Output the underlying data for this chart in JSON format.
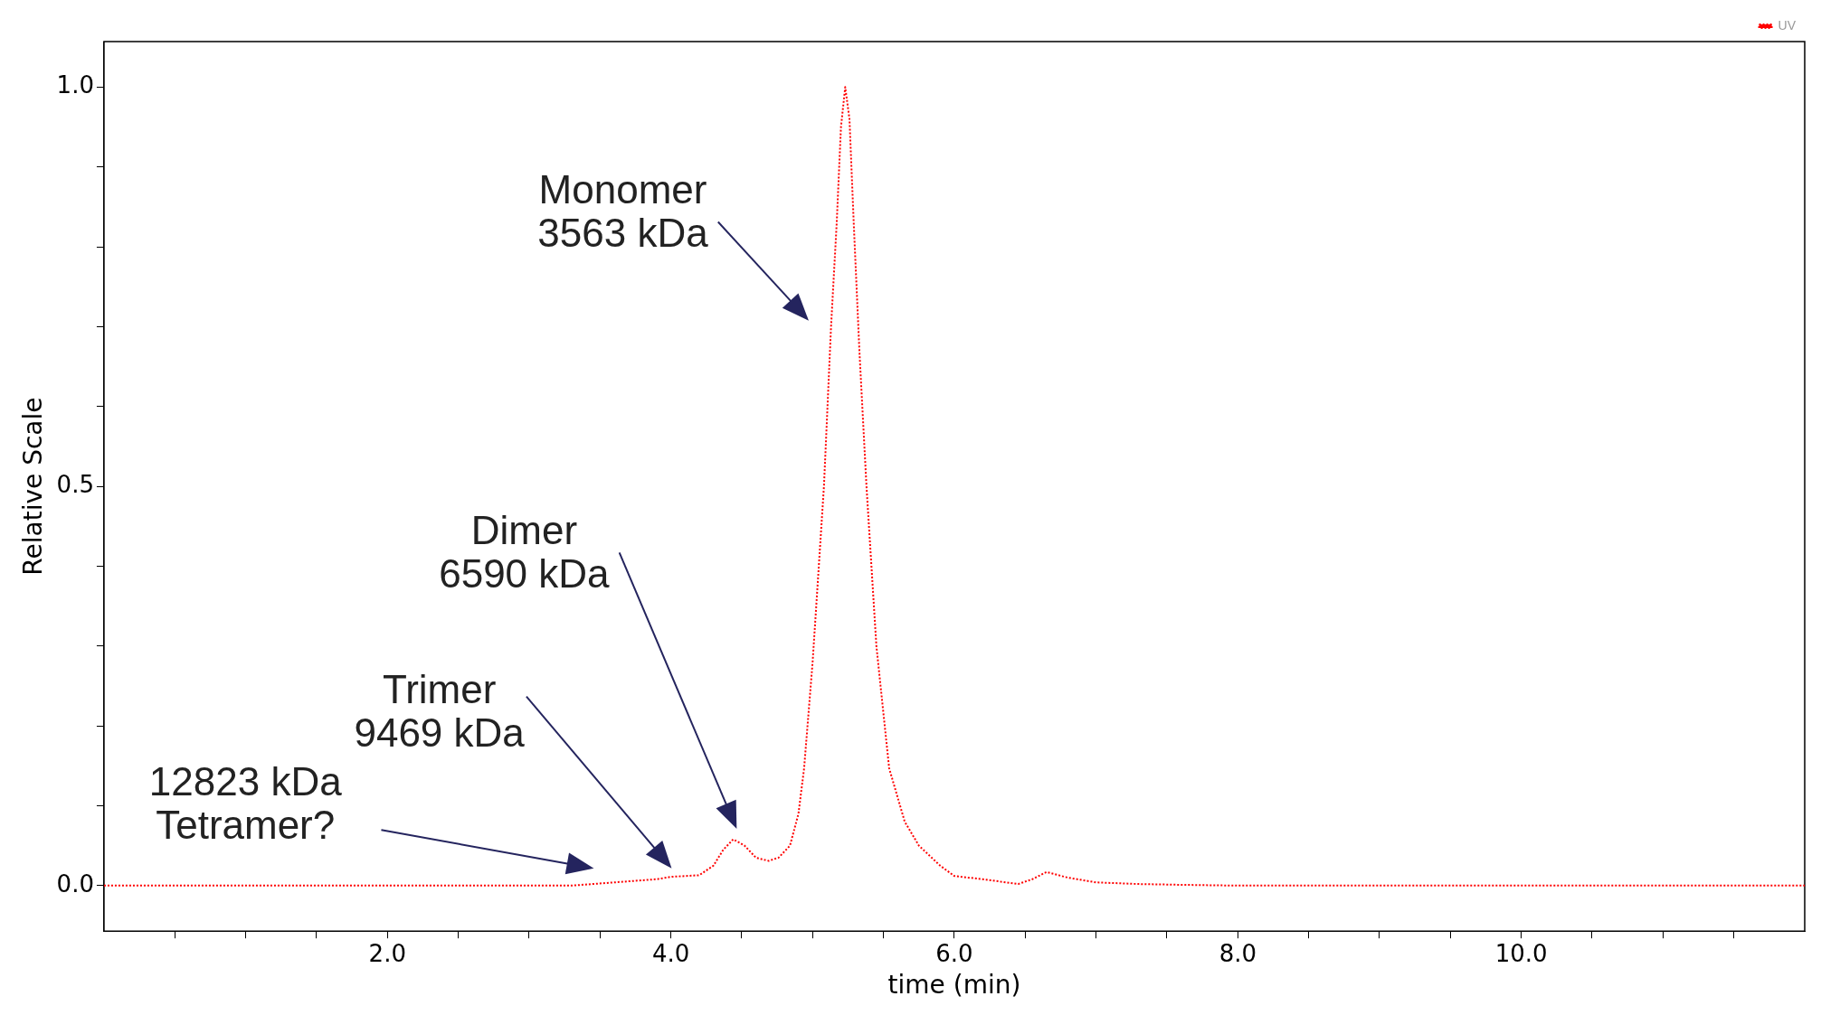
{
  "chart_data": {
    "type": "line",
    "xlabel": "time (min)",
    "ylabel": "Relative Scale",
    "xlim": [
      0,
      12
    ],
    "ylim": [
      -0.057,
      1.057
    ],
    "xticks": [
      {
        "value": 0.5,
        "label": null
      },
      {
        "value": 1,
        "label": null
      },
      {
        "value": 1.5,
        "label": null
      },
      {
        "value": 2,
        "label": "2.0"
      },
      {
        "value": 2.5,
        "label": null
      },
      {
        "value": 3,
        "label": null
      },
      {
        "value": 3.5,
        "label": null
      },
      {
        "value": 4,
        "label": "4.0"
      },
      {
        "value": 4.5,
        "label": null
      },
      {
        "value": 5,
        "label": null
      },
      {
        "value": 5.5,
        "label": null
      },
      {
        "value": 6,
        "label": "6.0"
      },
      {
        "value": 6.5,
        "label": null
      },
      {
        "value": 7,
        "label": null
      },
      {
        "value": 7.5,
        "label": null
      },
      {
        "value": 8,
        "label": "8.0"
      },
      {
        "value": 8.5,
        "label": null
      },
      {
        "value": 9,
        "label": null
      },
      {
        "value": 9.5,
        "label": null
      },
      {
        "value": 10,
        "label": "10.0"
      },
      {
        "value": 10.5,
        "label": null
      },
      {
        "value": 11,
        "label": null
      },
      {
        "value": 11.5,
        "label": null
      }
    ],
    "yticks": [
      {
        "value": 0,
        "label": "0.0"
      },
      {
        "value": 0.1,
        "label": null
      },
      {
        "value": 0.2,
        "label": null
      },
      {
        "value": 0.3,
        "label": null
      },
      {
        "value": 0.4,
        "label": null
      },
      {
        "value": 0.5,
        "label": "0.5"
      },
      {
        "value": 0.6,
        "label": null
      },
      {
        "value": 0.7,
        "label": null
      },
      {
        "value": 0.8,
        "label": null
      },
      {
        "value": 0.9,
        "label": null
      },
      {
        "value": 1,
        "label": "1.0"
      }
    ],
    "grid": false,
    "legend": "top right",
    "marker": "none",
    "line_style": "dotted",
    "series": [
      {
        "name": "UV",
        "color": "#ff0000",
        "x": [
          0,
          3.3,
          3.6,
          3.9,
          4.0,
          4.2,
          4.3,
          4.37,
          4.44,
          4.52,
          4.6,
          4.69,
          4.76,
          4.84,
          4.9,
          4.94,
          5.0,
          5.08,
          5.13,
          5.17,
          5.2,
          5.23,
          5.26,
          5.29,
          5.33,
          5.38,
          5.45,
          5.54,
          5.65,
          5.75,
          5.9,
          6.0,
          6.2,
          6.45,
          6.55,
          6.65,
          6.8,
          7.0,
          7.3,
          7.6,
          8,
          12
        ],
        "values": [
          0,
          0,
          0.004,
          0.008,
          0.011,
          0.013,
          0.025,
          0.045,
          0.058,
          0.05,
          0.035,
          0.031,
          0.035,
          0.05,
          0.09,
          0.147,
          0.28,
          0.5,
          0.7,
          0.83,
          0.95,
          1.0,
          0.96,
          0.83,
          0.67,
          0.5,
          0.3,
          0.147,
          0.08,
          0.05,
          0.025,
          0.012,
          0.008,
          0.002,
          0.008,
          0.017,
          0.01,
          0.004,
          0.002,
          0.001,
          0,
          0
        ]
      }
    ],
    "annotations": [
      "Monomer\n3563 kDa",
      "Dimer\n6590 kDa",
      "Trimer\n9469 kDa",
      "12823 kDa\nTetramer?"
    ]
  }
}
